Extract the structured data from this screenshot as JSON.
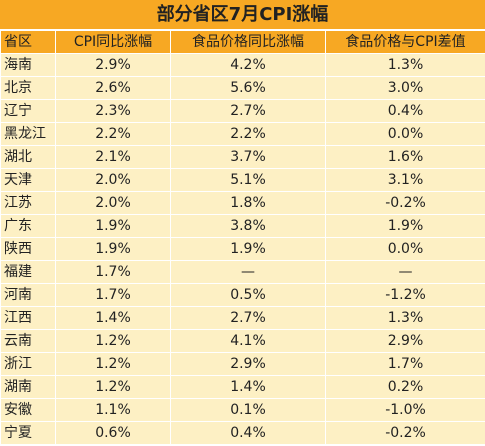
{
  "header": {
    "title": "部分省区7月CPI涨幅"
  },
  "table": {
    "columns": [
      "省区",
      "CPI同比涨幅",
      "食品价格同比涨幅",
      "食品价格与CPI差值"
    ],
    "rows": [
      [
        "海南",
        "2.9%",
        "4.2%",
        "1.3%"
      ],
      [
        "北京",
        "2.6%",
        "5.6%",
        "3.0%"
      ],
      [
        "辽宁",
        "2.3%",
        "2.7%",
        "0.4%"
      ],
      [
        "黑龙江",
        "2.2%",
        "2.2%",
        "0.0%"
      ],
      [
        "湖北",
        "2.1%",
        "3.7%",
        "1.6%"
      ],
      [
        "天津",
        "2.0%",
        "5.1%",
        "3.1%"
      ],
      [
        "江苏",
        "2.0%",
        "1.8%",
        "-0.2%"
      ],
      [
        "广东",
        "1.9%",
        "3.8%",
        "1.9%"
      ],
      [
        "陕西",
        "1.9%",
        "1.9%",
        "0.0%"
      ],
      [
        "福建",
        "1.7%",
        "—",
        "—"
      ],
      [
        "河南",
        "1.7%",
        "0.5%",
        "-1.2%"
      ],
      [
        "江西",
        "1.4%",
        "2.7%",
        "1.3%"
      ],
      [
        "云南",
        "1.2%",
        "4.1%",
        "2.9%"
      ],
      [
        "浙江",
        "1.2%",
        "2.9%",
        "1.7%"
      ],
      [
        "湖南",
        "1.2%",
        "1.4%",
        "0.2%"
      ],
      [
        "安徽",
        "1.1%",
        "0.1%",
        "-1.0%"
      ],
      [
        "宁夏",
        "0.6%",
        "0.4%",
        "-0.2%"
      ]
    ]
  }
}
